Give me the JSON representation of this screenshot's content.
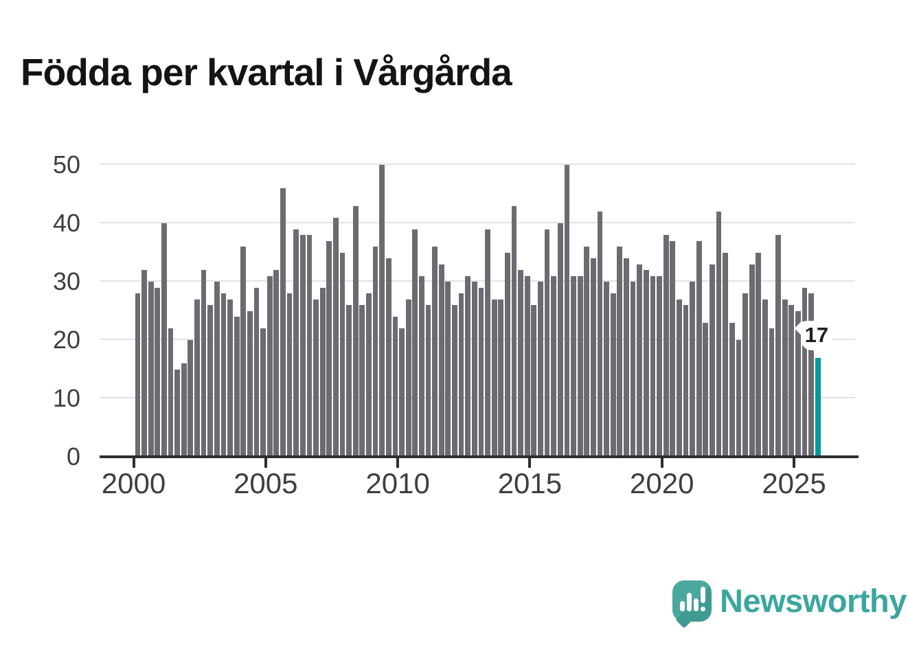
{
  "title": "Födda per kvartal i Vårgårda",
  "chart_data": {
    "type": "bar",
    "title": "Födda per kvartal i Vårgårda",
    "frequency": "quarterly",
    "start_period": "2000-Q1",
    "end_period": "2025-Q4",
    "values": [
      28,
      32,
      30,
      29,
      40,
      22,
      15,
      16,
      20,
      27,
      32,
      26,
      30,
      28,
      27,
      24,
      36,
      25,
      29,
      22,
      31,
      32,
      46,
      28,
      39,
      38,
      38,
      27,
      29,
      37,
      41,
      35,
      26,
      43,
      26,
      28,
      36,
      50,
      34,
      24,
      22,
      27,
      39,
      31,
      26,
      36,
      33,
      30,
      26,
      28,
      31,
      30,
      29,
      39,
      27,
      27,
      35,
      43,
      32,
      31,
      26,
      30,
      39,
      31,
      40,
      50,
      31,
      31,
      36,
      34,
      42,
      30,
      28,
      36,
      34,
      30,
      33,
      32,
      31,
      31,
      38,
      37,
      27,
      26,
      30,
      37,
      23,
      33,
      42,
      35,
      23,
      20,
      28,
      33,
      35,
      27,
      22,
      38,
      27,
      26,
      25,
      29,
      28,
      17
    ],
    "ylim": [
      0,
      50
    ],
    "y_ticks": [
      0,
      10,
      20,
      30,
      40,
      50
    ],
    "x_tick_labels": [
      "2000",
      "2005",
      "2010",
      "2015",
      "2020",
      "2025"
    ],
    "x_tick_every_quarters": 20,
    "grid": true,
    "legend": "none",
    "bar_color": "#6b6b71",
    "highlight_color": "#009a9a",
    "highlight": {
      "index": 103,
      "label": "17"
    }
  },
  "annotation": {
    "label": "17"
  },
  "branding": {
    "name": "Newsworthy",
    "icon": "speech-bubble-bar-chart-icon",
    "color": "#3ba69e"
  }
}
